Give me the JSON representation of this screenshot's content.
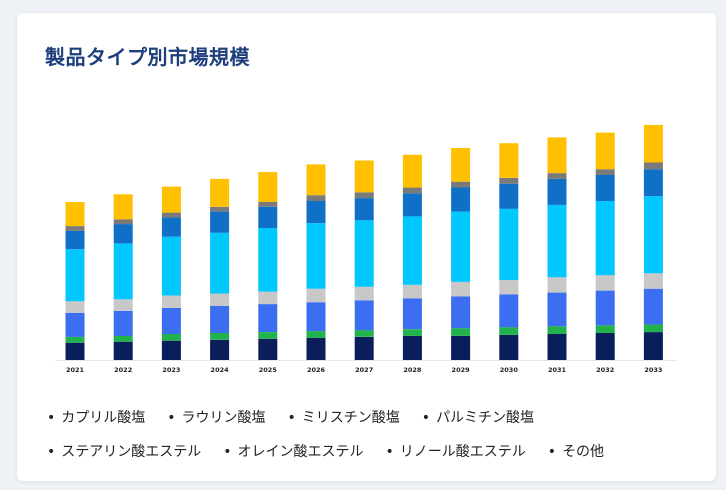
{
  "chart_data": {
    "type": "bar",
    "stacked": true,
    "title": "製品タイプ別市場規模",
    "xlabel": "",
    "ylabel": "",
    "grid": false,
    "legend_position": "bottom",
    "categories": [
      "2021",
      "2022",
      "2023",
      "2024",
      "2025",
      "2026",
      "2027",
      "2028",
      "2029",
      "2030",
      "2031",
      "2032",
      "2033"
    ],
    "series": [
      {
        "name": "カプリル酸塩",
        "color": "#0a1e5c",
        "values": [
          18,
          19,
          20,
          21,
          22,
          23,
          24,
          25,
          25,
          26,
          27,
          28,
          29
        ]
      },
      {
        "name": "ラウリン酸塩",
        "color": "#22b24c",
        "values": [
          6,
          6,
          7,
          7,
          7,
          7,
          7,
          7,
          8,
          8,
          8,
          8,
          8
        ]
      },
      {
        "name": "ミリスチン酸塩",
        "color": "#3b6ef0",
        "values": [
          25,
          26,
          27,
          28,
          29,
          30,
          31,
          32,
          33,
          34,
          35,
          36,
          37
        ]
      },
      {
        "name": "パルミチン酸塩",
        "color": "#c8c8c8",
        "values": [
          12,
          12,
          13,
          13,
          13,
          14,
          14,
          14,
          15,
          15,
          16,
          16,
          16
        ]
      },
      {
        "name": "ステアリン酸エステル",
        "color": "#00c8ff",
        "values": [
          54,
          58,
          61,
          63,
          66,
          68,
          69,
          71,
          73,
          74,
          75,
          77,
          80
        ]
      },
      {
        "name": "オレイン酸エステル",
        "color": "#1070c8",
        "values": [
          19,
          20,
          20,
          22,
          22,
          23,
          23,
          24,
          25,
          26,
          27,
          27,
          28
        ]
      },
      {
        "name": "リノール酸エステル",
        "color": "#7a7a7a",
        "values": [
          5,
          5,
          5,
          5,
          5,
          6,
          6,
          6,
          6,
          6,
          6,
          6,
          7
        ]
      },
      {
        "name": "その他",
        "color": "#ffc000",
        "values": [
          25,
          26,
          27,
          29,
          31,
          32,
          33,
          34,
          35,
          36,
          37,
          38,
          39
        ]
      }
    ]
  },
  "legend_bullet": "•"
}
